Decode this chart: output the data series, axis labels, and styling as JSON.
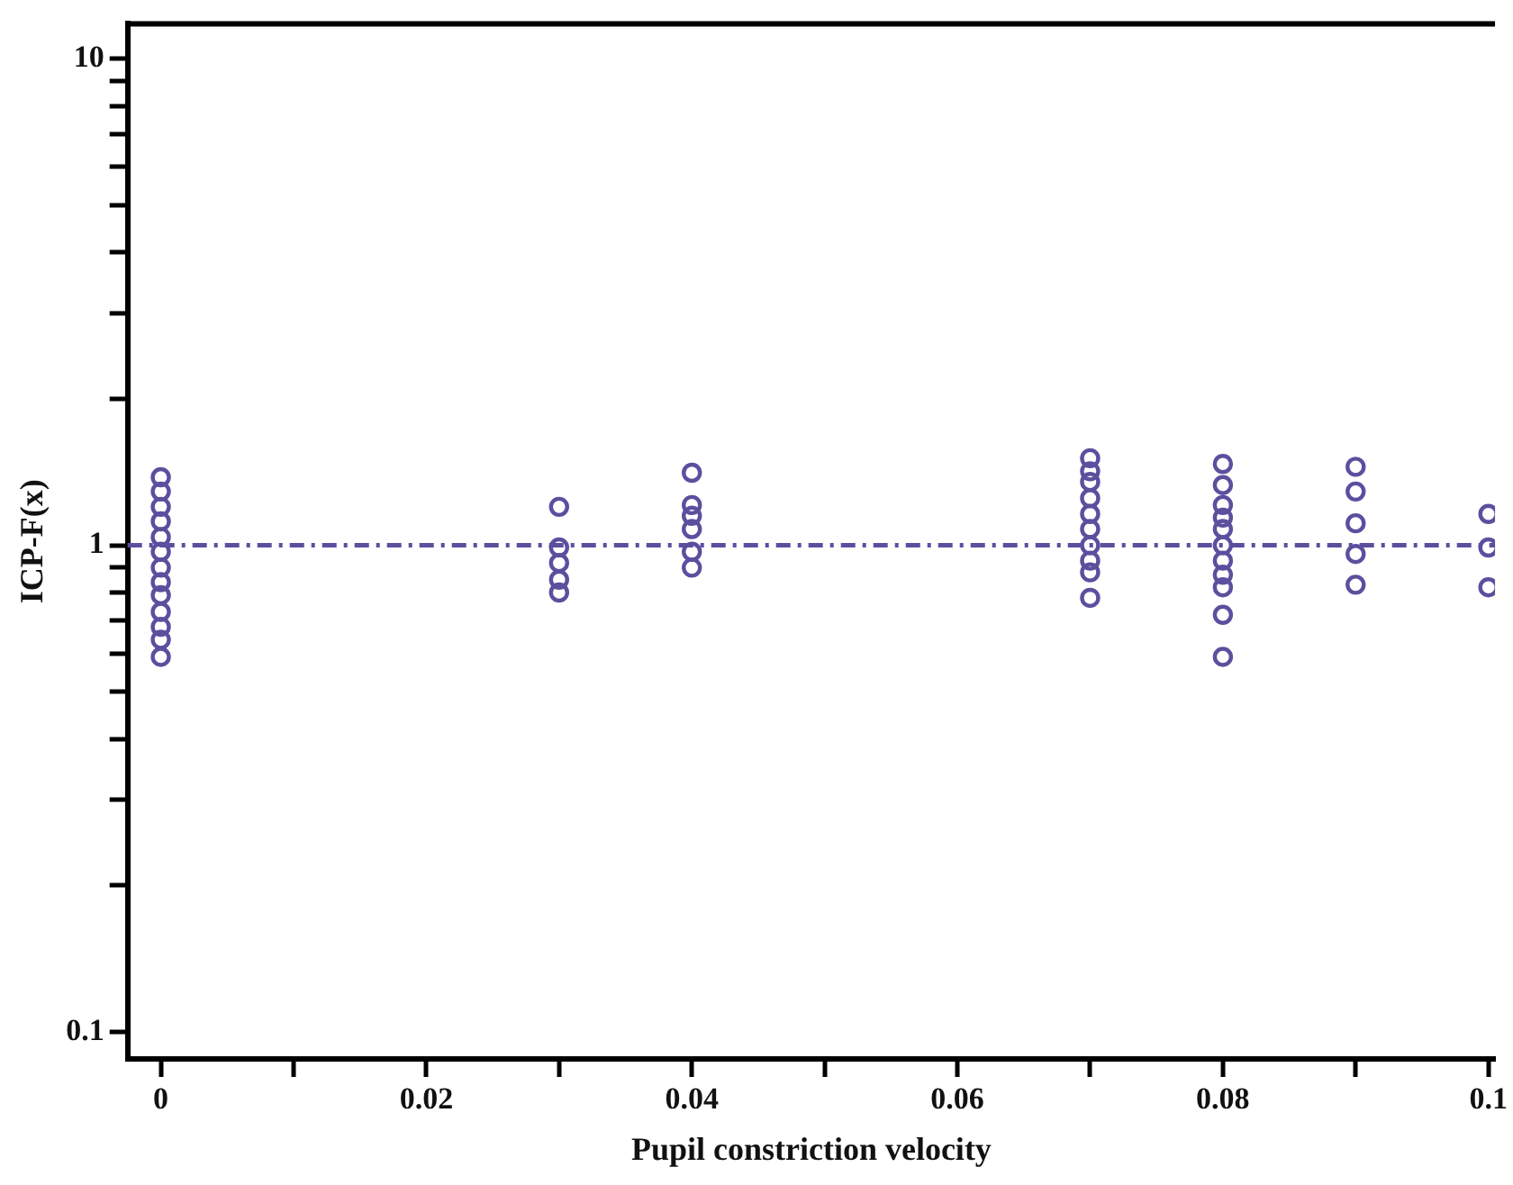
{
  "chart_data": {
    "type": "scatter",
    "xlabel": "Pupil constriction velocity",
    "ylabel": "ICP-F(x)",
    "log": "y",
    "marker": "circle",
    "grid": false,
    "legend": false,
    "xlim": [
      -0.0025,
      0.1005
    ],
    "ylim": [
      0.088,
      11.8
    ],
    "xticks": [
      0,
      {
        "value": 0.01,
        "label": null
      },
      0.02,
      {
        "value": 0.03,
        "label": null
      },
      0.04,
      {
        "value": 0.05,
        "label": null
      },
      0.06,
      {
        "value": 0.07,
        "label": null
      },
      0.08,
      {
        "value": 0.09,
        "label": null
      },
      0.1
    ],
    "yticks": [
      0.1,
      {
        "value": 0.2,
        "label": null
      },
      {
        "value": 0.3,
        "label": null
      },
      {
        "value": 0.4,
        "label": null
      },
      {
        "value": 0.5,
        "label": null
      },
      {
        "value": 0.6,
        "label": null
      },
      {
        "value": 0.7,
        "label": null
      },
      {
        "value": 0.8,
        "label": null
      },
      {
        "value": 0.9,
        "label": null
      },
      1,
      {
        "value": 2,
        "label": null
      },
      {
        "value": 3,
        "label": null
      },
      {
        "value": 4,
        "label": null
      },
      {
        "value": 5,
        "label": null
      },
      {
        "value": 6,
        "label": null
      },
      {
        "value": 7,
        "label": null
      },
      {
        "value": 8,
        "label": null
      },
      {
        "value": 9,
        "label": null
      },
      10
    ],
    "ref_lines": [
      {
        "axis": "y",
        "value": 1,
        "color": "#5b4f9e",
        "line_style": "dashdot"
      }
    ],
    "series": [
      {
        "color": "#5b4f9e",
        "x": [
          0,
          0,
          0,
          0,
          0,
          0,
          0,
          0,
          0,
          0,
          0,
          0,
          0,
          0.03,
          0.03,
          0.03,
          0.03,
          0.03,
          0.04,
          0.04,
          0.04,
          0.04,
          0.04,
          0.04,
          0.07,
          0.07,
          0.07,
          0.07,
          0.07,
          0.07,
          0.07,
          0.07,
          0.07,
          0.07,
          0.08,
          0.08,
          0.08,
          0.08,
          0.08,
          0.08,
          0.08,
          0.08,
          0.08,
          0.08,
          0.08,
          0.09,
          0.09,
          0.09,
          0.09,
          0.09,
          0.1,
          0.1,
          0.1
        ],
        "values": [
          1.38,
          1.29,
          1.2,
          1.12,
          1.04,
          0.97,
          0.9,
          0.84,
          0.79,
          0.73,
          0.68,
          0.64,
          0.59,
          1.2,
          0.99,
          0.92,
          0.85,
          0.8,
          1.41,
          1.21,
          1.15,
          1.08,
          0.97,
          0.9,
          1.51,
          1.42,
          1.35,
          1.25,
          1.16,
          1.08,
          1.0,
          0.93,
          0.88,
          0.78,
          1.47,
          1.33,
          1.21,
          1.14,
          1.08,
          1.0,
          0.93,
          0.87,
          0.82,
          0.72,
          0.59,
          1.45,
          1.29,
          1.11,
          0.96,
          0.83,
          1.16,
          0.99,
          0.82
        ]
      }
    ]
  }
}
